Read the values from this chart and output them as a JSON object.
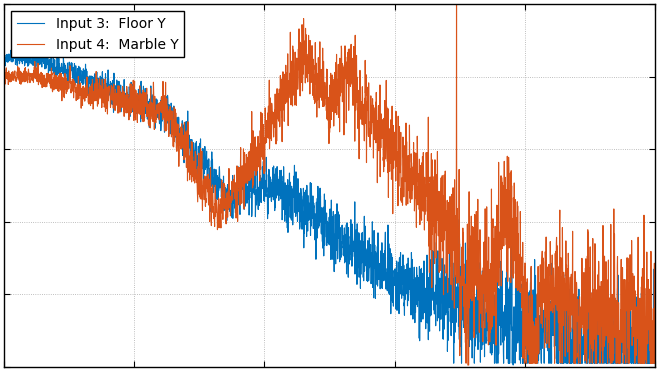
{
  "title": "",
  "xlabel": "",
  "ylabel": "",
  "line1_label": "Input 3:  Floor Y",
  "line2_label": "Input 4:  Marble Y",
  "line1_color": "#0072BD",
  "line2_color": "#D95319",
  "background_color": "#ffffff",
  "grid_color": "#b0b0b0",
  "figsize": [
    6.59,
    3.71
  ],
  "dpi": 100,
  "seed": 42,
  "legend_loc": "upper left"
}
